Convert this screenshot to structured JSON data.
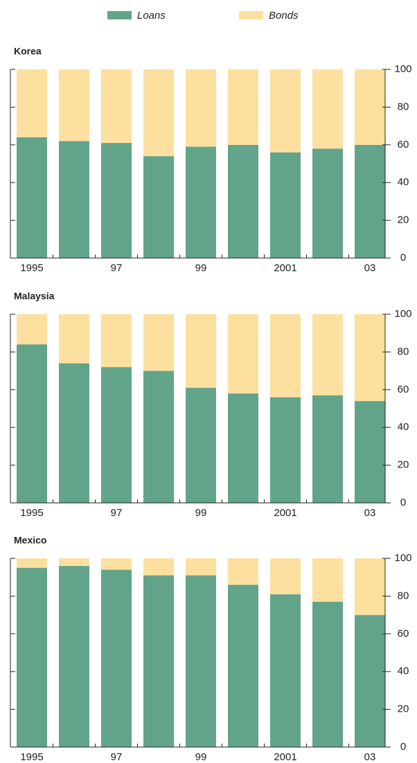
{
  "chart_data": [
    {
      "type": "bar",
      "stacked": true,
      "title": "Korea",
      "categories": [
        "1995",
        null,
        "97",
        null,
        "99",
        null,
        "2001",
        null,
        "03"
      ],
      "series": [
        {
          "name": "Loans",
          "color": "#62a48a",
          "values": [
            64,
            62,
            61,
            54,
            59,
            60,
            56,
            58,
            60
          ]
        },
        {
          "name": "Bonds",
          "color": "#fde0a0",
          "values": [
            36,
            38,
            39,
            46,
            41,
            40,
            44,
            42,
            40
          ]
        }
      ],
      "ylim": [
        0,
        100
      ],
      "yticks": [
        0,
        20,
        40,
        60,
        80,
        100
      ]
    },
    {
      "type": "bar",
      "stacked": true,
      "title": "Malaysia",
      "categories": [
        "1995",
        null,
        "97",
        null,
        "99",
        null,
        "2001",
        null,
        "03"
      ],
      "series": [
        {
          "color": "#62a48a",
          "values": [
            84,
            74,
            72,
            70,
            61,
            58,
            56,
            57,
            54
          ]
        },
        {
          "color": "#fde0a0",
          "values": [
            16,
            26,
            28,
            30,
            39,
            42,
            44,
            43,
            46
          ]
        }
      ],
      "ylim": [
        0,
        100
      ],
      "yticks": [
        0,
        20,
        40,
        60,
        80,
        100
      ]
    },
    {
      "type": "bar",
      "stacked": true,
      "title": "Mexico",
      "categories": [
        "1995",
        null,
        "97",
        null,
        "99",
        null,
        "2001",
        null,
        "03"
      ],
      "series": [
        {
          "color": "#62a48a",
          "values": [
            95,
            96,
            94,
            91,
            91,
            86,
            81,
            77,
            70
          ]
        },
        {
          "color": "#fde0a0",
          "values": [
            5,
            4,
            6,
            9,
            9,
            14,
            19,
            23,
            30
          ]
        }
      ],
      "ylim": [
        0,
        100
      ],
      "yticks": [
        0,
        20,
        40,
        60,
        80,
        100
      ]
    }
  ]
}
